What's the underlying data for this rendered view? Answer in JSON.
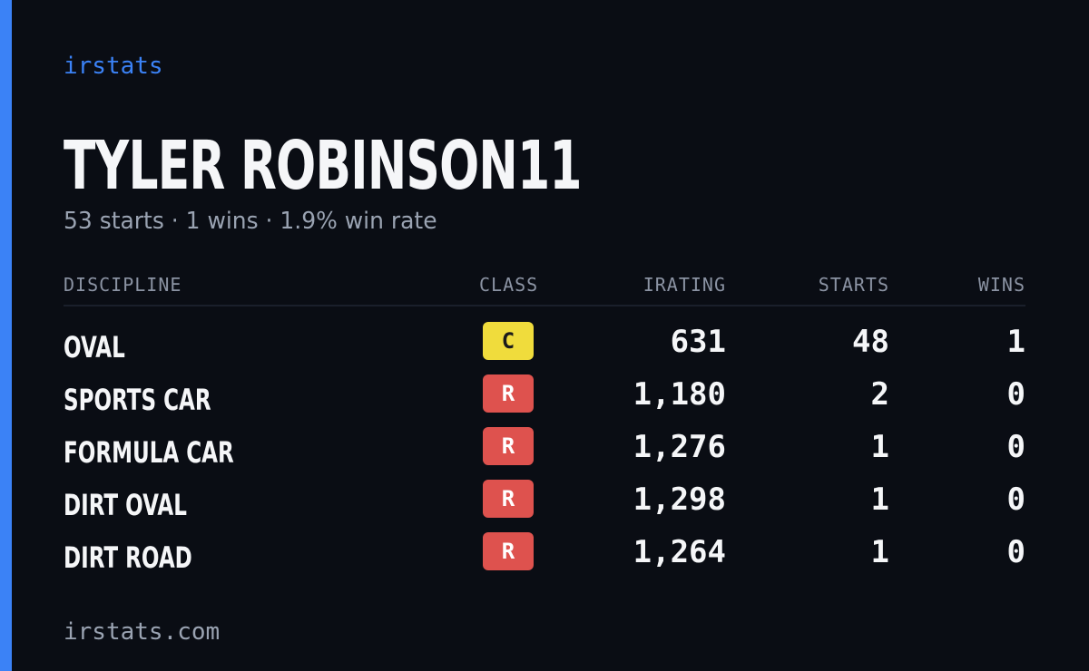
{
  "brand": "irstats",
  "driver": {
    "name": "TYLER ROBINSON11",
    "summary": "53 starts · 1 wins · 1.9% win rate"
  },
  "table": {
    "headers": {
      "discipline": "DISCIPLINE",
      "class": "CLASS",
      "irating": "IRATING",
      "starts": "STARTS",
      "wins": "WINS"
    },
    "rows": [
      {
        "discipline": "OVAL",
        "class": "C",
        "irating": "631",
        "starts": "48",
        "wins": "1"
      },
      {
        "discipline": "SPORTS CAR",
        "class": "R",
        "irating": "1,180",
        "starts": "2",
        "wins": "0"
      },
      {
        "discipline": "FORMULA CAR",
        "class": "R",
        "irating": "1,276",
        "starts": "1",
        "wins": "0"
      },
      {
        "discipline": "DIRT OVAL",
        "class": "R",
        "irating": "1,298",
        "starts": "1",
        "wins": "0"
      },
      {
        "discipline": "DIRT ROAD",
        "class": "R",
        "irating": "1,264",
        "starts": "1",
        "wins": "0"
      }
    ]
  },
  "footer": "irstats.com",
  "colors": {
    "accent": "#3b82f6",
    "background": "#0a0d14",
    "class_c": "#f0dc3c",
    "class_r": "#de524e"
  }
}
